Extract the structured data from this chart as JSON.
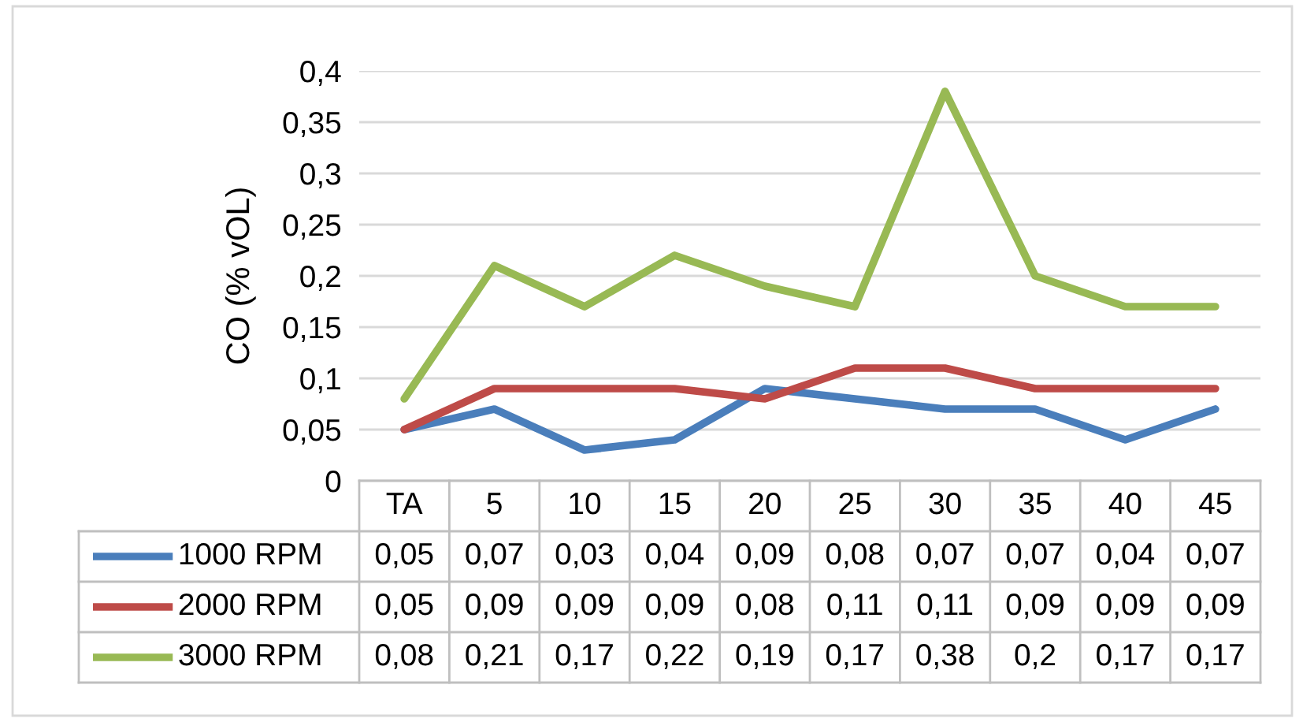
{
  "chart_data": {
    "type": "line",
    "ylabel": "CO (% vOL)",
    "categories": [
      "TA",
      "5",
      "10",
      "15",
      "20",
      "25",
      "30",
      "35",
      "40",
      "45"
    ],
    "series": [
      {
        "name": "1000 RPM",
        "color": "#4a7ebb",
        "values": [
          0.05,
          0.07,
          0.03,
          0.04,
          0.09,
          0.08,
          0.07,
          0.07,
          0.04,
          0.07
        ],
        "value_labels": [
          "0,05",
          "0,07",
          "0,03",
          "0,04",
          "0,09",
          "0,08",
          "0,07",
          "0,07",
          "0,04",
          "0,07"
        ]
      },
      {
        "name": "2000 RPM",
        "color": "#be4b48",
        "values": [
          0.05,
          0.09,
          0.09,
          0.09,
          0.08,
          0.11,
          0.11,
          0.09,
          0.09,
          0.09
        ],
        "value_labels": [
          "0,05",
          "0,09",
          "0,09",
          "0,09",
          "0,08",
          "0,11",
          "0,11",
          "0,09",
          "0,09",
          "0,09"
        ]
      },
      {
        "name": "3000 RPM",
        "color": "#98b954",
        "values": [
          0.08,
          0.21,
          0.17,
          0.22,
          0.19,
          0.17,
          0.38,
          0.2,
          0.17,
          0.17
        ],
        "value_labels": [
          "0,08",
          "0,21",
          "0,17",
          "0,22",
          "0,19",
          "0,17",
          "0,38",
          "0,2",
          "0,17",
          "0,17"
        ]
      }
    ],
    "ylim": [
      0,
      0.4
    ],
    "yticks": [
      0,
      {
        "value": 0.05,
        "label": "0,05"
      },
      {
        "value": 0.1,
        "label": "0,1"
      },
      {
        "value": 0.15,
        "label": "0,15"
      },
      {
        "value": 0.2,
        "label": "0,2"
      },
      {
        "value": 0.25,
        "label": "0,25"
      },
      {
        "value": 0.3,
        "label": "0,3"
      },
      {
        "value": 0.35,
        "label": "0,35"
      },
      {
        "value": 0.4,
        "label": "0,4"
      }
    ],
    "grid": "y",
    "legend": "bottom",
    "marker": "none",
    "line_style": "solid"
  }
}
